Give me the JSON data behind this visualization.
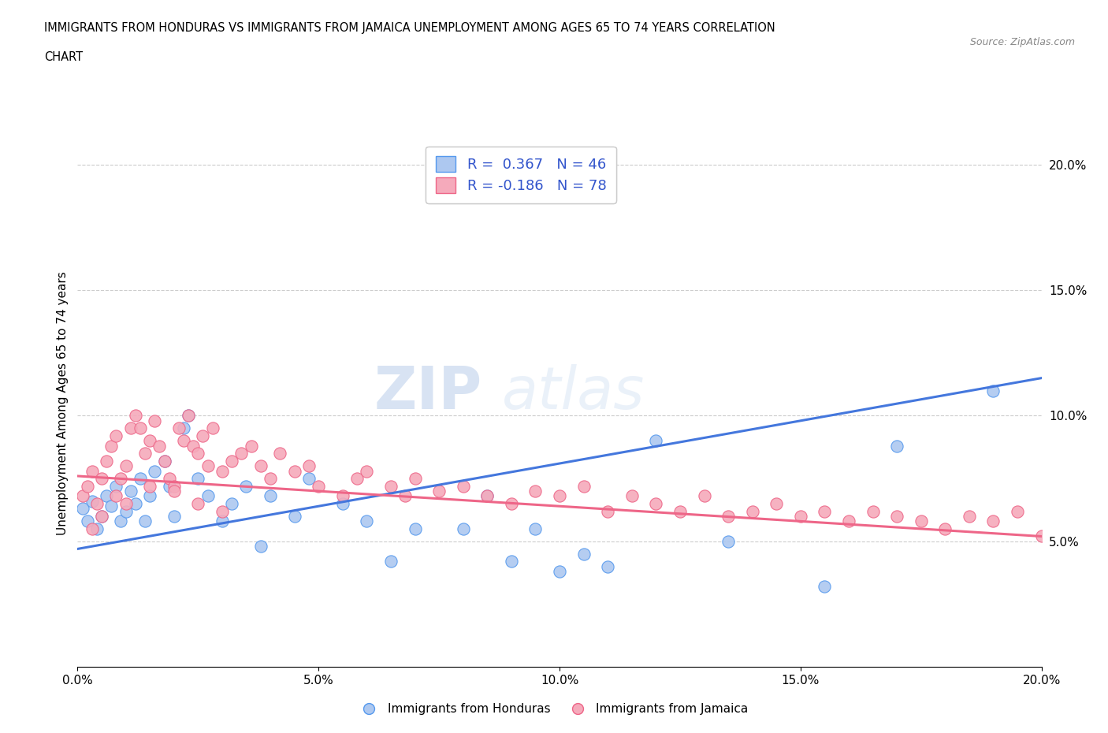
{
  "title_line1": "IMMIGRANTS FROM HONDURAS VS IMMIGRANTS FROM JAMAICA UNEMPLOYMENT AMONG AGES 65 TO 74 YEARS CORRELATION",
  "title_line2": "CHART",
  "source_text": "Source: ZipAtlas.com",
  "ylabel": "Unemployment Among Ages 65 to 74 years",
  "xlim": [
    0.0,
    0.2
  ],
  "ylim": [
    0.0,
    0.21
  ],
  "xticks": [
    0.0,
    0.05,
    0.1,
    0.15,
    0.2
  ],
  "yticks": [
    0.05,
    0.1,
    0.15,
    0.2
  ],
  "xticklabels": [
    "0.0%",
    "5.0%",
    "10.0%",
    "15.0%",
    "20.0%"
  ],
  "yticklabels_right": [
    "5.0%",
    "10.0%",
    "15.0%",
    "20.0%"
  ],
  "watermark_zip": "ZIP",
  "watermark_atlas": "atlas",
  "legend_line1": "R =  0.367   N = 46",
  "legend_line2": "R = -0.186   N = 78",
  "color_honduras_fill": "#adc8f0",
  "color_honduras_edge": "#5599ee",
  "color_jamaica_fill": "#f5aabb",
  "color_jamaica_edge": "#ee6688",
  "color_line_honduras": "#4477dd",
  "color_line_jamaica": "#ee6688",
  "legend_label_honduras": "Immigrants from Honduras",
  "legend_label_jamaica": "Immigrants from Jamaica",
  "honduras_x": [
    0.001,
    0.002,
    0.003,
    0.004,
    0.005,
    0.006,
    0.007,
    0.008,
    0.009,
    0.01,
    0.011,
    0.012,
    0.013,
    0.014,
    0.015,
    0.016,
    0.018,
    0.019,
    0.02,
    0.022,
    0.023,
    0.025,
    0.027,
    0.03,
    0.032,
    0.035,
    0.038,
    0.04,
    0.045,
    0.048,
    0.055,
    0.06,
    0.065,
    0.07,
    0.08,
    0.085,
    0.09,
    0.095,
    0.1,
    0.105,
    0.11,
    0.12,
    0.135,
    0.155,
    0.17,
    0.19
  ],
  "honduras_y": [
    0.063,
    0.058,
    0.066,
    0.055,
    0.06,
    0.068,
    0.064,
    0.072,
    0.058,
    0.062,
    0.07,
    0.065,
    0.075,
    0.058,
    0.068,
    0.078,
    0.082,
    0.072,
    0.06,
    0.095,
    0.1,
    0.075,
    0.068,
    0.058,
    0.065,
    0.072,
    0.048,
    0.068,
    0.06,
    0.075,
    0.065,
    0.058,
    0.042,
    0.055,
    0.055,
    0.068,
    0.042,
    0.055,
    0.038,
    0.045,
    0.04,
    0.09,
    0.05,
    0.032,
    0.088,
    0.11
  ],
  "jamaica_x": [
    0.001,
    0.002,
    0.003,
    0.004,
    0.005,
    0.006,
    0.007,
    0.008,
    0.009,
    0.01,
    0.011,
    0.012,
    0.013,
    0.014,
    0.015,
    0.016,
    0.017,
    0.018,
    0.019,
    0.02,
    0.021,
    0.022,
    0.023,
    0.024,
    0.025,
    0.026,
    0.027,
    0.028,
    0.03,
    0.032,
    0.034,
    0.036,
    0.038,
    0.04,
    0.042,
    0.045,
    0.048,
    0.05,
    0.055,
    0.058,
    0.06,
    0.065,
    0.068,
    0.07,
    0.075,
    0.08,
    0.085,
    0.09,
    0.095,
    0.1,
    0.105,
    0.11,
    0.115,
    0.12,
    0.125,
    0.13,
    0.135,
    0.14,
    0.145,
    0.15,
    0.155,
    0.16,
    0.165,
    0.17,
    0.175,
    0.18,
    0.185,
    0.19,
    0.195,
    0.2,
    0.003,
    0.005,
    0.008,
    0.01,
    0.015,
    0.02,
    0.025,
    0.03
  ],
  "jamaica_y": [
    0.068,
    0.072,
    0.078,
    0.065,
    0.075,
    0.082,
    0.088,
    0.092,
    0.075,
    0.08,
    0.095,
    0.1,
    0.095,
    0.085,
    0.09,
    0.098,
    0.088,
    0.082,
    0.075,
    0.072,
    0.095,
    0.09,
    0.1,
    0.088,
    0.085,
    0.092,
    0.08,
    0.095,
    0.078,
    0.082,
    0.085,
    0.088,
    0.08,
    0.075,
    0.085,
    0.078,
    0.08,
    0.072,
    0.068,
    0.075,
    0.078,
    0.072,
    0.068,
    0.075,
    0.07,
    0.072,
    0.068,
    0.065,
    0.07,
    0.068,
    0.072,
    0.062,
    0.068,
    0.065,
    0.062,
    0.068,
    0.06,
    0.062,
    0.065,
    0.06,
    0.062,
    0.058,
    0.062,
    0.06,
    0.058,
    0.055,
    0.06,
    0.058,
    0.062,
    0.052,
    0.055,
    0.06,
    0.068,
    0.065,
    0.072,
    0.07,
    0.065,
    0.062
  ],
  "honduras_line_x0": 0.0,
  "honduras_line_y0": 0.047,
  "honduras_line_x1": 0.2,
  "honduras_line_y1": 0.115,
  "jamaica_line_x0": 0.0,
  "jamaica_line_y0": 0.076,
  "jamaica_line_x1": 0.2,
  "jamaica_line_y1": 0.052
}
